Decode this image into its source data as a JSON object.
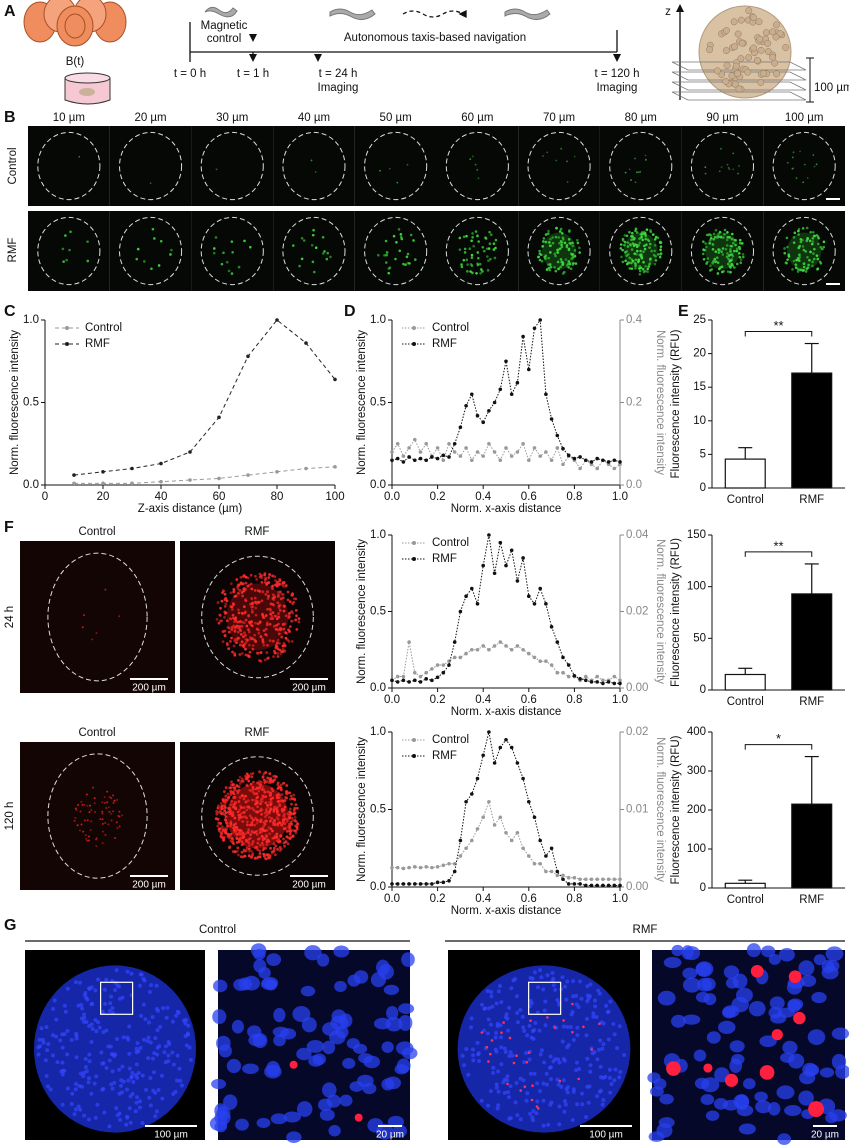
{
  "panel_labels": [
    "A",
    "B",
    "C",
    "D",
    "E",
    "F",
    "G"
  ],
  "panel_a": {
    "field": "B(t)",
    "magnetic_control": [
      "Magnetic",
      "control"
    ],
    "navigation": "Autonomous taxis-based navigation",
    "timepoints": [
      "t = 0 h",
      "t = 1 h",
      "t = 24 h",
      "t = 120 h"
    ],
    "imaging": [
      "Imaging",
      "Imaging"
    ],
    "z_axis": "z",
    "depth": "100 µm"
  },
  "panel_b": {
    "depths": [
      "10 µm",
      "20 µm",
      "30 µm",
      "40 µm",
      "50 µm",
      "60 µm",
      "70 µm",
      "80 µm",
      "90 µm",
      "100 µm"
    ],
    "rows": [
      "Control",
      "RMF"
    ]
  },
  "panel_f": {
    "columns": [
      "Control",
      "RMF"
    ],
    "rows": [
      "24 h",
      "120 h"
    ],
    "scale_bars": [
      "200 µm",
      "200 µm",
      "200 µm",
      "200 µm"
    ]
  },
  "panel_g": {
    "groups": [
      "Control",
      "RMF"
    ],
    "scale_bars": [
      "100 µm",
      "20 µm",
      "100 µm",
      "20 µm"
    ]
  },
  "chart_data": [
    {
      "type": "line",
      "x_label": "Z-axis distance (µm)",
      "y_label": "Norm. fluorescence intensity",
      "x": [
        10,
        20,
        30,
        40,
        50,
        60,
        70,
        80,
        90,
        100
      ],
      "series": [
        {
          "name": "Control",
          "color": "#999999",
          "values": [
            0.01,
            0.01,
            0.01,
            0.02,
            0.03,
            0.04,
            0.06,
            0.08,
            0.1,
            0.11
          ]
        },
        {
          "name": "RMF",
          "color": "#222222",
          "values": [
            0.06,
            0.08,
            0.1,
            0.13,
            0.2,
            0.41,
            0.78,
            1.0,
            0.86,
            0.64
          ]
        }
      ],
      "xlim": [
        0,
        100
      ],
      "xticks": [
        0,
        20,
        40,
        60,
        80,
        100
      ],
      "ylim": [
        0,
        1
      ],
      "yticks": [
        {
          "value": 0,
          "label": "0.0"
        },
        0.5,
        {
          "value": 1,
          "label": "1.0"
        }
      ],
      "line_style": "dashed",
      "legend": "upper left"
    },
    {
      "type": "line",
      "x_label": "Norm. x-axis distance",
      "y_label": "Norm. fluorescence intensity",
      "y2_label": "Norm. fluorescence intensity",
      "x": [
        0,
        0.025,
        0.05,
        0.075,
        0.1,
        0.125,
        0.15,
        0.175,
        0.2,
        0.225,
        0.25,
        0.275,
        0.3,
        0.325,
        0.35,
        0.375,
        0.4,
        0.425,
        0.45,
        0.475,
        0.5,
        0.525,
        0.55,
        0.575,
        0.6,
        0.625,
        0.65,
        0.675,
        0.7,
        0.725,
        0.75,
        0.775,
        0.8,
        0.825,
        0.85,
        0.875,
        0.9,
        0.925,
        0.95,
        0.975,
        1
      ],
      "series": [
        {
          "name": "Control",
          "color": "#999999",
          "axis": "y2",
          "values": [
            0.08,
            0.1,
            0.07,
            0.09,
            0.11,
            0.08,
            0.1,
            0.07,
            0.09,
            0.06,
            0.1,
            0.08,
            0.07,
            0.09,
            0.06,
            0.08,
            0.07,
            0.1,
            0.08,
            0.06,
            0.09,
            0.07,
            0.08,
            0.1,
            0.06,
            0.09,
            0.07,
            0.08,
            0.06,
            0.09,
            0.05,
            0.07,
            0.06,
            0.04,
            0.06,
            0.05,
            0.04,
            0.06,
            0.05,
            0.04,
            0.05
          ]
        },
        {
          "name": "RMF",
          "color": "#111111",
          "values": [
            0.15,
            0.16,
            0.14,
            0.17,
            0.15,
            0.16,
            0.15,
            0.17,
            0.16,
            0.18,
            0.17,
            0.25,
            0.35,
            0.48,
            0.55,
            0.42,
            0.38,
            0.45,
            0.5,
            0.58,
            0.75,
            0.55,
            0.62,
            0.9,
            0.7,
            0.95,
            1.0,
            0.55,
            0.4,
            0.3,
            0.22,
            0.18,
            0.16,
            0.17,
            0.15,
            0.14,
            0.16,
            0.15,
            0.14,
            0.15,
            0.14
          ]
        }
      ],
      "xlim": [
        0,
        1
      ],
      "xticks": [
        {
          "value": 0,
          "label": "0.0"
        },
        0.2,
        0.4,
        0.6,
        0.8,
        {
          "value": 1,
          "label": "1.0"
        }
      ],
      "ylim": [
        0,
        1
      ],
      "yticks": [
        {
          "value": 0,
          "label": "0.0"
        },
        0.5,
        {
          "value": 1,
          "label": "1.0"
        }
      ],
      "y2lim": [
        0,
        0.4
      ],
      "y2ticks": [
        {
          "value": 0,
          "label": "0.0"
        },
        0.2,
        0.4
      ],
      "line_style": "dotted",
      "legend": "upper left"
    },
    {
      "type": "bar",
      "y_label": "Fluorescence intensity (RFU)",
      "categories": [
        "Control",
        "RMF"
      ],
      "values": [
        4.3,
        17.1
      ],
      "errors": [
        1.7,
        4.4
      ],
      "colors": [
        "#ffffff",
        "#000000"
      ],
      "ylim": [
        0,
        25
      ],
      "yticks": [
        0,
        5,
        10,
        15,
        20,
        25
      ],
      "significance": "**"
    },
    {
      "type": "line",
      "x_label": "Norm. x-axis distance",
      "y_label": "Norm. fluorescence intensity",
      "y2_label": "Norm. fluorescence intensity",
      "x": [
        0,
        0.025,
        0.05,
        0.075,
        0.1,
        0.125,
        0.15,
        0.175,
        0.2,
        0.225,
        0.25,
        0.275,
        0.3,
        0.325,
        0.35,
        0.375,
        0.4,
        0.425,
        0.45,
        0.475,
        0.5,
        0.525,
        0.55,
        0.575,
        0.6,
        0.625,
        0.65,
        0.675,
        0.7,
        0.725,
        0.75,
        0.775,
        0.8,
        0.825,
        0.85,
        0.875,
        0.9,
        0.925,
        0.95,
        0.975,
        1
      ],
      "series": [
        {
          "name": "Control",
          "color": "#999999",
          "axis": "y2",
          "values": [
            0.002,
            0.003,
            0.003,
            0.012,
            0.004,
            0.003,
            0.004,
            0.005,
            0.006,
            0.006,
            0.007,
            0.008,
            0.008,
            0.009,
            0.01,
            0.01,
            0.011,
            0.01,
            0.011,
            0.012,
            0.011,
            0.01,
            0.011,
            0.01,
            0.009,
            0.008,
            0.007,
            0.007,
            0.006,
            0.004,
            0.004,
            0.003,
            0.003,
            0.002,
            0.003,
            0.002,
            0.003,
            0.002,
            0.002,
            0.003,
            0.002
          ]
        },
        {
          "name": "RMF",
          "color": "#111111",
          "values": [
            0.05,
            0.04,
            0.05,
            0.04,
            0.05,
            0.04,
            0.06,
            0.05,
            0.07,
            0.1,
            0.15,
            0.3,
            0.5,
            0.6,
            0.65,
            0.55,
            0.8,
            1.0,
            0.75,
            0.95,
            0.8,
            0.9,
            0.7,
            0.85,
            0.6,
            0.55,
            0.65,
            0.55,
            0.4,
            0.3,
            0.2,
            0.15,
            0.08,
            0.06,
            0.05,
            0.04,
            0.04,
            0.03,
            0.04,
            0.03,
            0.03
          ]
        }
      ],
      "xlim": [
        0,
        1
      ],
      "xticks": [
        {
          "value": 0,
          "label": "0.0"
        },
        0.2,
        0.4,
        0.6,
        0.8,
        {
          "value": 1,
          "label": "1.0"
        }
      ],
      "ylim": [
        0,
        1
      ],
      "yticks": [
        {
          "value": 0,
          "label": "0.0"
        },
        0.5,
        {
          "value": 1,
          "label": "1.0"
        }
      ],
      "y2lim": [
        0,
        0.04
      ],
      "y2ticks": [
        {
          "value": 0,
          "label": "0.00"
        },
        0.02,
        0.04
      ],
      "line_style": "dotted",
      "legend": "upper left"
    },
    {
      "type": "bar",
      "y_label": "Fluorescence intensity (RFU)",
      "categories": [
        "Control",
        "RMF"
      ],
      "values": [
        15,
        93
      ],
      "errors": [
        6,
        29
      ],
      "colors": [
        "#ffffff",
        "#000000"
      ],
      "ylim": [
        0,
        150
      ],
      "yticks": [
        0,
        50,
        100,
        150
      ],
      "significance": "**"
    },
    {
      "type": "line",
      "x_label": "Norm. x-axis distance",
      "y_label": "Norm. fluorescence intensity",
      "y2_label": "Norm. fluorescence intensity",
      "x": [
        0,
        0.025,
        0.05,
        0.075,
        0.1,
        0.125,
        0.15,
        0.175,
        0.2,
        0.225,
        0.25,
        0.275,
        0.3,
        0.325,
        0.35,
        0.375,
        0.4,
        0.425,
        0.45,
        0.475,
        0.5,
        0.525,
        0.55,
        0.575,
        0.6,
        0.625,
        0.65,
        0.675,
        0.7,
        0.725,
        0.75,
        0.775,
        0.8,
        0.825,
        0.85,
        0.875,
        0.9,
        0.925,
        0.95,
        0.975,
        1
      ],
      "series": [
        {
          "name": "Control",
          "color": "#999999",
          "axis": "y2",
          "values": [
            0.0025,
            0.0025,
            0.0024,
            0.0025,
            0.0026,
            0.0025,
            0.0026,
            0.0025,
            0.0026,
            0.0028,
            0.003,
            0.003,
            0.004,
            0.005,
            0.006,
            0.0075,
            0.009,
            0.011,
            0.008,
            0.009,
            0.007,
            0.006,
            0.007,
            0.005,
            0.004,
            0.003,
            0.003,
            0.002,
            0.002,
            0.0015,
            0.0015,
            0.0012,
            0.0012,
            0.001,
            0.001,
            0.001,
            0.001,
            0.001,
            0.001,
            0.001,
            0.001
          ]
        },
        {
          "name": "RMF",
          "color": "#111111",
          "values": [
            0.02,
            0.02,
            0.02,
            0.02,
            0.02,
            0.02,
            0.02,
            0.02,
            0.03,
            0.03,
            0.04,
            0.1,
            0.3,
            0.55,
            0.6,
            0.7,
            0.85,
            1.0,
            0.8,
            0.9,
            0.95,
            0.9,
            0.8,
            0.7,
            0.55,
            0.45,
            0.3,
            0.2,
            0.25,
            0.1,
            0.05,
            0.02,
            0.02,
            0.02,
            0.01,
            0.01,
            0.01,
            0.01,
            0.01,
            0.01,
            0.01
          ]
        }
      ],
      "xlim": [
        0,
        1
      ],
      "xticks": [
        {
          "value": 0,
          "label": "0.0"
        },
        0.2,
        0.4,
        0.6,
        0.8,
        {
          "value": 1,
          "label": "1.0"
        }
      ],
      "ylim": [
        0,
        1
      ],
      "yticks": [
        {
          "value": 0,
          "label": "0.0"
        },
        0.5,
        {
          "value": 1,
          "label": "1.0"
        }
      ],
      "y2lim": [
        0,
        0.02
      ],
      "y2ticks": [
        {
          "value": 0,
          "label": "0.00"
        },
        0.01,
        0.02
      ],
      "line_style": "dotted",
      "legend": "upper left"
    },
    {
      "type": "bar",
      "y_label": "Fluorescence intensity (RFU)",
      "categories": [
        "Control",
        "RMF"
      ],
      "values": [
        12,
        215
      ],
      "errors": [
        8,
        122
      ],
      "colors": [
        "#ffffff",
        "#000000"
      ],
      "ylim": [
        0,
        400
      ],
      "yticks": [
        0,
        100,
        200,
        300,
        400
      ],
      "significance": "*"
    }
  ]
}
